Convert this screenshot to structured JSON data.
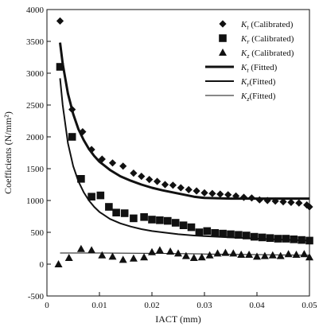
{
  "chart_data": {
    "type": "scatter",
    "title": "",
    "xlabel": "IACT (mm)",
    "ylabel": "Coefficients (N/mm²)",
    "xlim": [
      0,
      0.05
    ],
    "ylim": [
      -500,
      4000
    ],
    "xticks": [
      0,
      0.01,
      0.02,
      0.03,
      0.04,
      0.05
    ],
    "xtick_labels": [
      "0",
      "0.01",
      "0.02",
      "0.03",
      "0.04",
      "0.05"
    ],
    "yticks": [
      -500,
      0,
      500,
      1000,
      1500,
      2000,
      2500,
      3000,
      3500,
      4000
    ],
    "ytick_labels": [
      "-500",
      "0",
      "500",
      "1000",
      "1500",
      "2000",
      "2500",
      "3000",
      "3500",
      "4000"
    ],
    "grid": false,
    "legend_position": "top-right",
    "series": [
      {
        "name": "K_t (Calibrated)",
        "legend_sym": "K",
        "legend_sub": "t",
        "legend_rest": " (Calibrated)",
        "kind": "scatter",
        "marker": "diamond",
        "points": [
          [
            0.0025,
            3820
          ],
          [
            0.0048,
            2430
          ],
          [
            0.0068,
            2080
          ],
          [
            0.0085,
            1800
          ],
          [
            0.0105,
            1650
          ],
          [
            0.0125,
            1590
          ],
          [
            0.0145,
            1540
          ],
          [
            0.0165,
            1430
          ],
          [
            0.018,
            1380
          ],
          [
            0.0195,
            1330
          ],
          [
            0.021,
            1300
          ],
          [
            0.0225,
            1250
          ],
          [
            0.024,
            1240
          ],
          [
            0.0255,
            1200
          ],
          [
            0.027,
            1170
          ],
          [
            0.0285,
            1150
          ],
          [
            0.03,
            1120
          ],
          [
            0.0315,
            1110
          ],
          [
            0.033,
            1100
          ],
          [
            0.0345,
            1090
          ],
          [
            0.036,
            1070
          ],
          [
            0.0375,
            1050
          ],
          [
            0.039,
            1040
          ],
          [
            0.0405,
            1010
          ],
          [
            0.042,
            1000
          ],
          [
            0.0435,
            990
          ],
          [
            0.045,
            980
          ],
          [
            0.0465,
            970
          ],
          [
            0.048,
            960
          ],
          [
            0.0495,
            930
          ],
          [
            0.05,
            900
          ]
        ]
      },
      {
        "name": "K_r (Calibrated)",
        "legend_sym": "K",
        "legend_sub": "r",
        "legend_rest": " (Calibrated)",
        "kind": "scatter",
        "marker": "square",
        "points": [
          [
            0.0025,
            3100
          ],
          [
            0.0048,
            2000
          ],
          [
            0.0065,
            1340
          ],
          [
            0.0085,
            1060
          ],
          [
            0.0102,
            1080
          ],
          [
            0.0118,
            900
          ],
          [
            0.0132,
            810
          ],
          [
            0.0148,
            800
          ],
          [
            0.0165,
            720
          ],
          [
            0.0185,
            740
          ],
          [
            0.02,
            700
          ],
          [
            0.0215,
            690
          ],
          [
            0.023,
            680
          ],
          [
            0.0245,
            650
          ],
          [
            0.026,
            610
          ],
          [
            0.0275,
            580
          ],
          [
            0.029,
            500
          ],
          [
            0.0305,
            520
          ],
          [
            0.032,
            490
          ],
          [
            0.0335,
            480
          ],
          [
            0.035,
            470
          ],
          [
            0.0365,
            460
          ],
          [
            0.038,
            450
          ],
          [
            0.0395,
            430
          ],
          [
            0.041,
            420
          ],
          [
            0.0425,
            410
          ],
          [
            0.044,
            400
          ],
          [
            0.0455,
            400
          ],
          [
            0.047,
            390
          ],
          [
            0.0485,
            380
          ],
          [
            0.05,
            370
          ]
        ]
      },
      {
        "name": "K_z (Calibrated)",
        "legend_sym": "K",
        "legend_sub": "z",
        "legend_rest": " (Calibrated)",
        "kind": "scatter",
        "marker": "triangle",
        "points": [
          [
            0.0022,
            0
          ],
          [
            0.0042,
            100
          ],
          [
            0.0065,
            240
          ],
          [
            0.0085,
            220
          ],
          [
            0.0105,
            140
          ],
          [
            0.0125,
            120
          ],
          [
            0.0145,
            70
          ],
          [
            0.0165,
            90
          ],
          [
            0.0185,
            110
          ],
          [
            0.02,
            190
          ],
          [
            0.0215,
            220
          ],
          [
            0.0235,
            200
          ],
          [
            0.025,
            170
          ],
          [
            0.0265,
            130
          ],
          [
            0.028,
            100
          ],
          [
            0.0295,
            110
          ],
          [
            0.031,
            140
          ],
          [
            0.0325,
            170
          ],
          [
            0.034,
            180
          ],
          [
            0.0355,
            170
          ],
          [
            0.037,
            150
          ],
          [
            0.0385,
            150
          ],
          [
            0.04,
            120
          ],
          [
            0.0415,
            130
          ],
          [
            0.043,
            140
          ],
          [
            0.0445,
            130
          ],
          [
            0.046,
            160
          ],
          [
            0.0475,
            150
          ],
          [
            0.049,
            160
          ],
          [
            0.05,
            110
          ]
        ]
      },
      {
        "name": "K_t (Fitted)",
        "legend_sym": "K",
        "legend_sub": "t",
        "legend_rest": " (Fitted)",
        "kind": "line",
        "stroke_width": 3,
        "points": [
          [
            0.0025,
            3480
          ],
          [
            0.003,
            3150
          ],
          [
            0.004,
            2680
          ],
          [
            0.005,
            2360
          ],
          [
            0.006,
            2120
          ],
          [
            0.007,
            1950
          ],
          [
            0.008,
            1810
          ],
          [
            0.009,
            1700
          ],
          [
            0.01,
            1610
          ],
          [
            0.012,
            1480
          ],
          [
            0.014,
            1380
          ],
          [
            0.016,
            1310
          ],
          [
            0.018,
            1250
          ],
          [
            0.02,
            1200
          ],
          [
            0.022,
            1160
          ],
          [
            0.025,
            1110
          ],
          [
            0.028,
            1060
          ],
          [
            0.03,
            1040
          ],
          [
            0.035,
            1030
          ],
          [
            0.04,
            1030
          ],
          [
            0.045,
            1030
          ],
          [
            0.05,
            1030
          ]
        ]
      },
      {
        "name": "K_r (Fitted)",
        "legend_sym": "K",
        "legend_sub": "r",
        "legend_rest": "(Fitted)",
        "kind": "line",
        "stroke_width": 2,
        "points": [
          [
            0.0025,
            2920
          ],
          [
            0.003,
            2500
          ],
          [
            0.004,
            1900
          ],
          [
            0.005,
            1540
          ],
          [
            0.006,
            1300
          ],
          [
            0.007,
            1130
          ],
          [
            0.008,
            1000
          ],
          [
            0.009,
            900
          ],
          [
            0.01,
            820
          ],
          [
            0.012,
            710
          ],
          [
            0.014,
            640
          ],
          [
            0.016,
            590
          ],
          [
            0.018,
            550
          ],
          [
            0.02,
            520
          ],
          [
            0.022,
            500
          ],
          [
            0.025,
            470
          ],
          [
            0.028,
            450
          ],
          [
            0.03,
            440
          ],
          [
            0.035,
            420
          ],
          [
            0.04,
            400
          ],
          [
            0.045,
            385
          ],
          [
            0.05,
            370
          ]
        ]
      },
      {
        "name": "K_z (Fitted)",
        "legend_sym": "K",
        "legend_sub": "z",
        "legend_rest": "(Fitted)",
        "kind": "line",
        "stroke_width": 1,
        "points": [
          [
            0.0025,
            175
          ],
          [
            0.01,
            175
          ],
          [
            0.02,
            170
          ],
          [
            0.03,
            160
          ],
          [
            0.04,
            150
          ],
          [
            0.05,
            140
          ]
        ]
      }
    ]
  }
}
